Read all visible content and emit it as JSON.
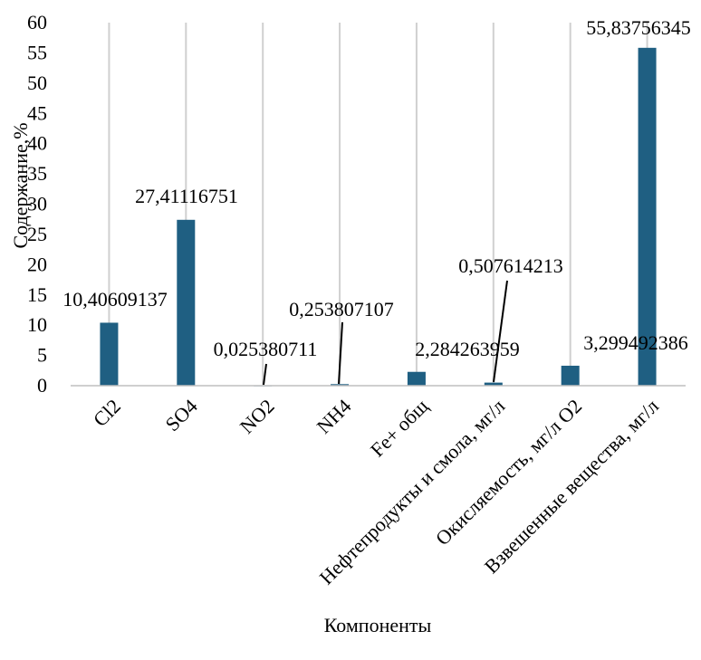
{
  "chart_data": {
    "type": "bar",
    "title": "",
    "xlabel": "Компоненты",
    "ylabel": "Содержание,%",
    "ylim": [
      0,
      60
    ],
    "yticks": [
      "0",
      "5",
      "10",
      "15",
      "20",
      "25",
      "30",
      "35",
      "40",
      "45",
      "50",
      "55",
      "60"
    ],
    "grid": "vertical",
    "legend": "none",
    "bar_color": "#1f5f82",
    "categories": [
      "Cl2",
      "SO4",
      "NO2",
      "NH4",
      "Fe+ общ",
      "Нефтепродукты и смола, мг/л",
      "Окисляемость, мг/л O2",
      "Взвешенные вещества, мг/л"
    ],
    "values": [
      10.40609137,
      27.41116751,
      0.025380711,
      0.253807107,
      2.284263959,
      0.507614213,
      3.299492386,
      55.83756345
    ],
    "data_labels": [
      "10,40609137",
      "27,41116751",
      "0,025380711",
      "0,253807107",
      "2,284263959",
      "0,507614213",
      "3,299492386",
      "55,83756345"
    ]
  }
}
